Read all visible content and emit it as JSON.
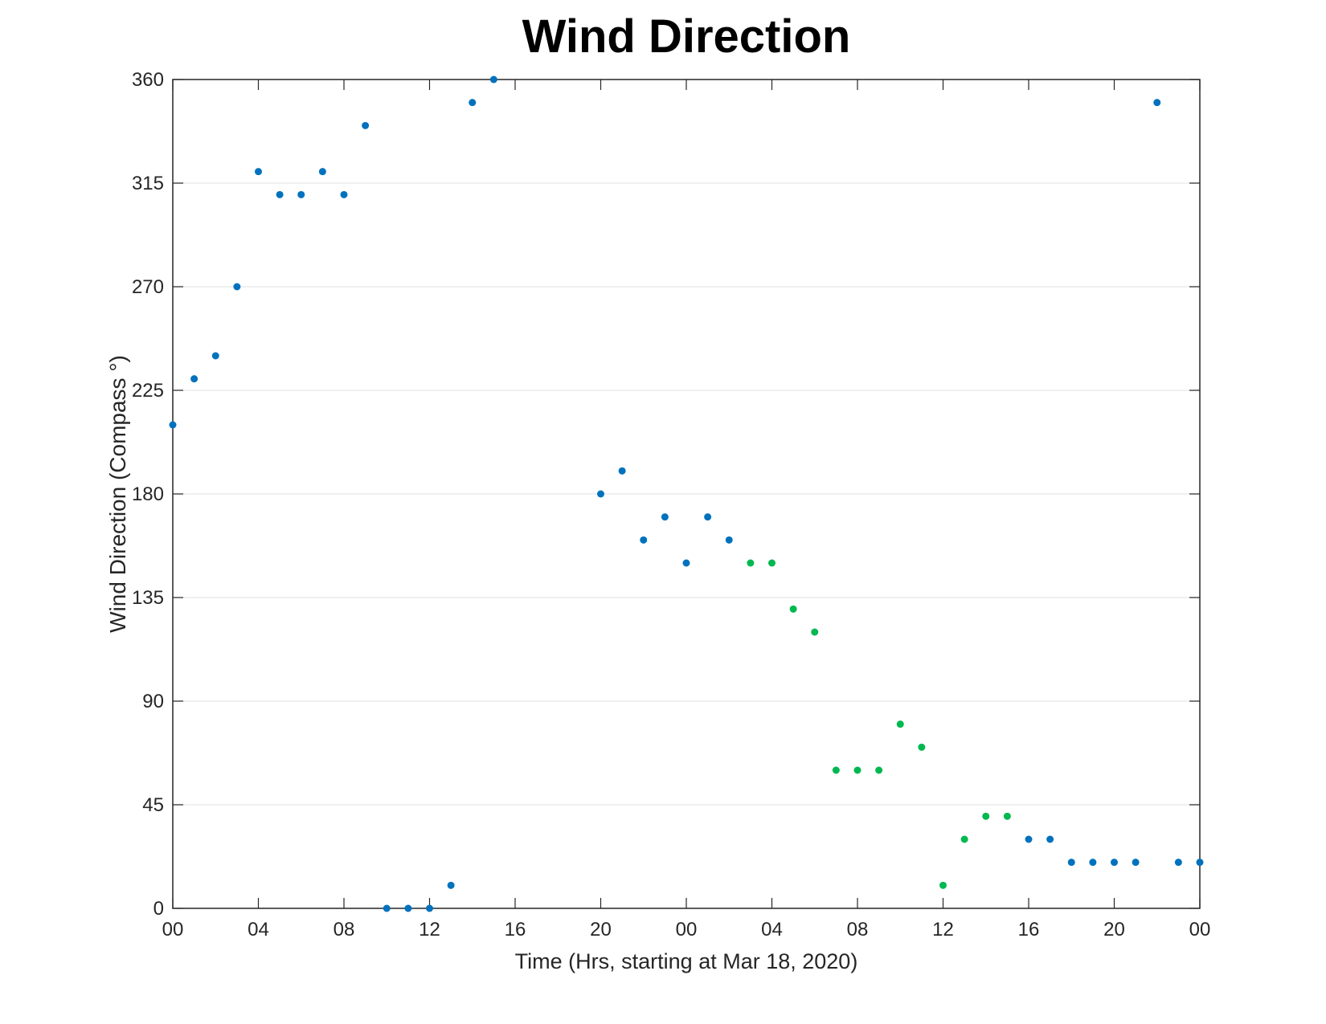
{
  "chart_data": {
    "type": "scatter",
    "title": "Wind Direction",
    "xlabel": "Time (Hrs, starting at Mar 18, 2020)",
    "ylabel": "Wind Direction (Compass °)",
    "xlim": [
      0,
      48
    ],
    "ylim": [
      0,
      360
    ],
    "x_ticks": [
      0,
      4,
      8,
      12,
      16,
      20,
      24,
      28,
      32,
      36,
      40,
      44,
      48
    ],
    "x_tick_labels": [
      "00",
      "04",
      "08",
      "12",
      "16",
      "20",
      "00",
      "04",
      "08",
      "12",
      "16",
      "20",
      "00"
    ],
    "y_ticks": [
      0,
      45,
      90,
      135,
      180,
      225,
      270,
      315,
      360
    ],
    "y_tick_labels": [
      "0",
      "45",
      "90",
      "135",
      "180",
      "225",
      "270",
      "315",
      "360"
    ],
    "grid": "horizontal-only",
    "legend": "none",
    "marker": "filled-circle",
    "marker_radius_px": 4.5,
    "axis_color": "#262626",
    "tick_label_color": "#262626",
    "grid_color": "#e7e7e7",
    "background": "#ffffff",
    "series": [
      {
        "name": "blue-points",
        "color": "#0072bd",
        "points": [
          [
            0,
            210
          ],
          [
            1,
            230
          ],
          [
            2,
            240
          ],
          [
            3,
            270
          ],
          [
            4,
            320
          ],
          [
            5,
            310
          ],
          [
            6,
            310
          ],
          [
            7,
            320
          ],
          [
            8,
            310
          ],
          [
            9,
            340
          ],
          [
            10,
            0
          ],
          [
            11,
            0
          ],
          [
            12,
            0
          ],
          [
            13,
            10
          ],
          [
            14,
            350
          ],
          [
            15,
            360
          ],
          [
            20,
            180
          ],
          [
            21,
            190
          ],
          [
            22,
            160
          ],
          [
            23,
            170
          ],
          [
            24,
            150
          ],
          [
            25,
            170
          ],
          [
            26,
            160
          ],
          [
            40,
            30
          ],
          [
            41,
            30
          ],
          [
            42,
            20
          ],
          [
            43,
            20
          ],
          [
            44,
            20
          ],
          [
            45,
            20
          ],
          [
            46,
            350
          ],
          [
            47,
            20
          ],
          [
            48,
            20
          ]
        ]
      },
      {
        "name": "green-points",
        "color": "#00b850",
        "points": [
          [
            27,
            150
          ],
          [
            28,
            150
          ],
          [
            29,
            130
          ],
          [
            30,
            120
          ],
          [
            31,
            60
          ],
          [
            32,
            60
          ],
          [
            33,
            60
          ],
          [
            34,
            80
          ],
          [
            35,
            70
          ],
          [
            36,
            10
          ],
          [
            37,
            30
          ],
          [
            38,
            40
          ],
          [
            39,
            40
          ]
        ]
      }
    ]
  }
}
